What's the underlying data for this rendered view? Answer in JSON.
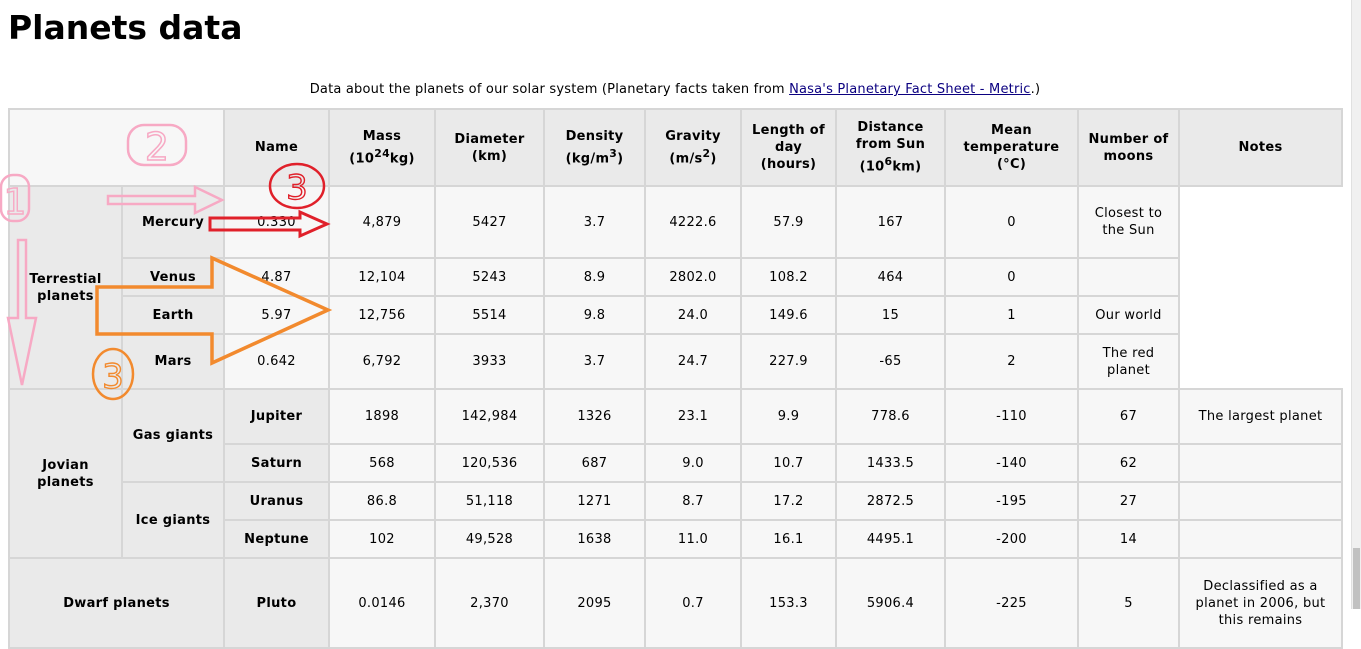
{
  "page": {
    "title": "Planets data",
    "caption_text": "Data about the planets of our solar system (Planetary facts taken from ",
    "caption_link": "Nasa's Planetary Fact Sheet - Metric",
    "caption_end": ".)"
  },
  "header": {
    "name": "Name",
    "mass": "Mass",
    "mass_unit_a": "(10",
    "mass_unit_sup": "24",
    "mass_unit_b": "kg)",
    "diameter": "Diameter",
    "diameter_unit": "(km)",
    "density": "Density",
    "density_unit_a": "(kg/m",
    "density_unit_sup": "3",
    "density_unit_b": ")",
    "gravity": "Gravity",
    "gravity_unit_a": "(m/s",
    "gravity_unit_sup": "2",
    "gravity_unit_b": ")",
    "day": "Length of day (hours)",
    "distance": "Distance from Sun",
    "distance_unit_a": "(10",
    "distance_unit_sup": "6",
    "distance_unit_b": "km)",
    "temp": "Mean temperature (°C)",
    "moons": "Number of moons",
    "notes": "Notes"
  },
  "groups": {
    "terrestrial": "Terrestial planets",
    "jovian": "Jovian planets",
    "gas": "Gas giants",
    "ice": "Ice giants",
    "dwarf": "Dwarf planets"
  },
  "rows": {
    "mercury": [
      "Mercury",
      "0.330",
      "4,879",
      "5427",
      "3.7",
      "4222.6",
      "57.9",
      "167",
      "0",
      "Closest to the Sun"
    ],
    "venus": [
      "Venus",
      "4.87",
      "12,104",
      "5243",
      "8.9",
      "2802.0",
      "108.2",
      "464",
      "0",
      ""
    ],
    "earth": [
      "Earth",
      "5.97",
      "12,756",
      "5514",
      "9.8",
      "24.0",
      "149.6",
      "15",
      "1",
      "Our world"
    ],
    "mars": [
      "Mars",
      "0.642",
      "6,792",
      "3933",
      "3.7",
      "24.7",
      "227.9",
      "-65",
      "2",
      "The red planet"
    ],
    "jupiter": [
      "Jupiter",
      "1898",
      "142,984",
      "1326",
      "23.1",
      "9.9",
      "778.6",
      "-110",
      "67",
      "The largest planet"
    ],
    "saturn": [
      "Saturn",
      "568",
      "120,536",
      "687",
      "9.0",
      "10.7",
      "1433.5",
      "-140",
      "62",
      ""
    ],
    "uranus": [
      "Uranus",
      "86.8",
      "51,118",
      "1271",
      "8.7",
      "17.2",
      "2872.5",
      "-195",
      "27",
      ""
    ],
    "neptune": [
      "Neptune",
      "102",
      "49,528",
      "1638",
      "11.0",
      "16.1",
      "4495.1",
      "-200",
      "14",
      ""
    ],
    "pluto": [
      "Pluto",
      "0.0146",
      "2,370",
      "2095",
      "0.7",
      "153.3",
      "5906.4",
      "-225",
      "5",
      "Declassified as a planet in 2006, but this remains"
    ]
  },
  "annotations": {
    "pink_top": "2",
    "pink_left": "1",
    "red_circle": "3",
    "orange_circle": "3",
    "colors": {
      "pink": "#f7a9c4",
      "red": "#e0202a",
      "orange": "#f28a2e"
    }
  }
}
